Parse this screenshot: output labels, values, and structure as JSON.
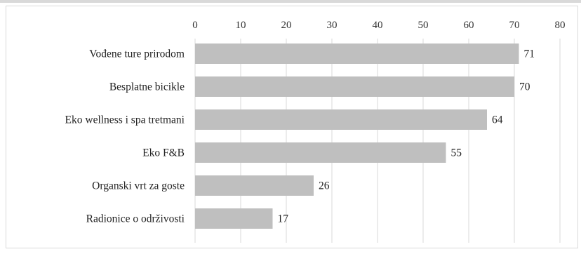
{
  "chart_data": {
    "type": "bar",
    "orientation": "horizontal",
    "categories": [
      "Vođene ture prirodom",
      "Besplatne bicikle",
      "Eko wellness i spa tretmani",
      "Eko F&B",
      "Organski vrt za goste",
      "Radionice o održivosti"
    ],
    "values": [
      71,
      70,
      64,
      55,
      26,
      17
    ],
    "value_labels": [
      "71",
      "70",
      "64",
      "55",
      "26",
      "17"
    ],
    "xlim": [
      0,
      80
    ],
    "xticks": [
      "0",
      "10",
      "20",
      "30",
      "40",
      "50",
      "60",
      "70",
      "80"
    ],
    "tick_values": [
      0,
      10,
      20,
      30,
      40,
      50,
      60,
      70,
      80
    ],
    "axis_position": "top",
    "grid": true,
    "legend": "none",
    "title": "",
    "xlabel": "",
    "ylabel": "",
    "bar_color": "#bfbfbf",
    "grid_color": "#d9d9d9"
  }
}
